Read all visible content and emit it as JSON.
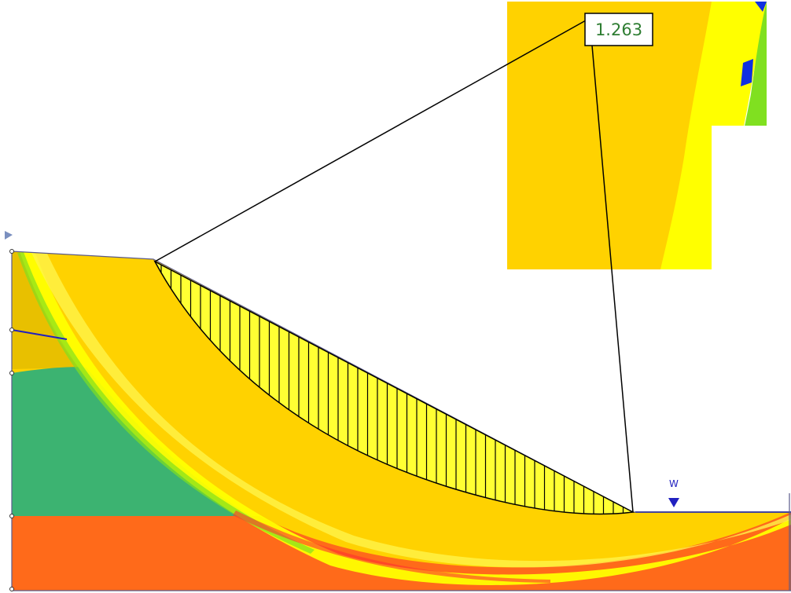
{
  "factor_of_safety": "1.263",
  "water_table_label": "W",
  "colors": {
    "fos_text": "#2e7d32",
    "water_table": "#2020c0",
    "slip_surface_fill": "#ffff33",
    "soil_top_layer": "#e8c000",
    "soil_middle_layer": "#3cb371",
    "soil_bottom_layer": "#ff6a1a",
    "contour_base": "#ffd200",
    "contour_high": "#ffff00",
    "contour_green": "#80e020",
    "contour_blue": "#1030e0",
    "boundary": "#5a5a8a"
  }
}
